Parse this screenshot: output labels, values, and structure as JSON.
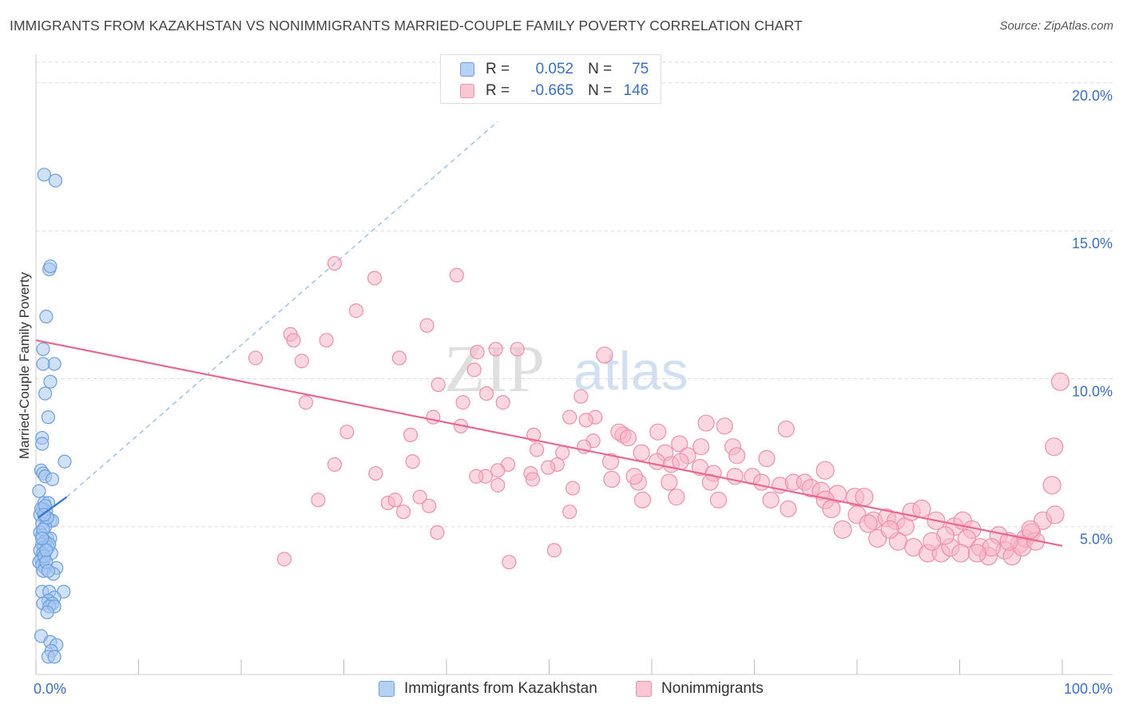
{
  "title": "IMMIGRANTS FROM KAZAKHSTAN VS NONIMMIGRANTS MARRIED-COUPLE FAMILY POVERTY CORRELATION CHART",
  "source": "Source: ZipAtlas.com",
  "watermark": {
    "zip": "ZIP",
    "atlas": "atlas"
  },
  "legend": {
    "r_label": "R =",
    "n_label": "N =",
    "series1": {
      "r": "0.052",
      "n": "75"
    },
    "series2": {
      "r": "-0.665",
      "n": "146"
    }
  },
  "bottom_legend": {
    "series1": "Immigrants from Kazakhstan",
    "series2": "Nonimmigrants"
  },
  "colors": {
    "blue_fill": "#a8c8f0",
    "blue_stroke": "#6a9ee0",
    "blue_line": "#3a78d4",
    "pink_fill": "#f7b7c9",
    "pink_stroke": "#ee8fab",
    "pink_line": "#e8688f",
    "grid": "#d9d9d9",
    "tick_text": "#3b6fc4"
  },
  "chart_data": {
    "type": "scatter",
    "title": "IMMIGRANTS FROM KAZAKHSTAN VS NONIMMIGRANTS MARRIED-COUPLE FAMILY POVERTY CORRELATION CHART",
    "xlabel": "",
    "ylabel": "Married-Couple Family Poverty",
    "xlim": [
      0,
      100
    ],
    "ylim": [
      0,
      20.7
    ],
    "x_tick_labels": [
      "0.0%",
      "100.0%"
    ],
    "y_ticks": [
      5,
      10,
      15,
      20
    ],
    "y_tick_labels": [
      "5.0%",
      "10.0%",
      "15.0%",
      "20.0%"
    ],
    "series": [
      {
        "name": "Immigrants from Kazakhstan",
        "color": "#a8c8f0",
        "r": 0.052,
        "n": 75,
        "trend_solid": {
          "x0": 0.2,
          "y0": 5.3,
          "x1": 3.0,
          "y1": 6.0
        },
        "trend_dashed": {
          "x0": 3.0,
          "y0": 6.0,
          "x1": 45,
          "y1": 18.7
        },
        "points": [
          [
            0.8,
            16.9
          ],
          [
            1.9,
            16.7
          ],
          [
            1.3,
            13.7
          ],
          [
            1.4,
            13.8
          ],
          [
            1.0,
            12.1
          ],
          [
            0.7,
            11.0
          ],
          [
            1.8,
            10.5
          ],
          [
            0.7,
            10.5
          ],
          [
            1.4,
            9.9
          ],
          [
            0.9,
            9.5
          ],
          [
            1.2,
            8.7
          ],
          [
            0.6,
            8.0
          ],
          [
            0.6,
            7.8
          ],
          [
            2.8,
            7.2
          ],
          [
            0.5,
            6.9
          ],
          [
            0.7,
            6.8
          ],
          [
            0.9,
            6.7
          ],
          [
            1.6,
            6.6
          ],
          [
            0.3,
            6.2
          ],
          [
            0.8,
            5.8
          ],
          [
            1.2,
            5.8
          ],
          [
            0.7,
            5.6
          ],
          [
            1.0,
            5.5
          ],
          [
            0.4,
            5.4
          ],
          [
            0.9,
            5.3
          ],
          [
            1.4,
            5.2
          ],
          [
            1.6,
            5.2
          ],
          [
            0.6,
            5.1
          ],
          [
            0.9,
            5.0
          ],
          [
            0.4,
            4.8
          ],
          [
            0.6,
            4.7
          ],
          [
            1.1,
            4.6
          ],
          [
            1.4,
            4.6
          ],
          [
            0.9,
            4.5
          ],
          [
            0.6,
            4.4
          ],
          [
            0.8,
            4.3
          ],
          [
            1.2,
            4.3
          ],
          [
            0.4,
            4.2
          ],
          [
            0.7,
            4.1
          ],
          [
            1.5,
            4.1
          ],
          [
            0.5,
            3.9
          ],
          [
            0.8,
            3.9
          ],
          [
            0.3,
            3.8
          ],
          [
            0.6,
            3.7
          ],
          [
            0.9,
            3.6
          ],
          [
            2.0,
            3.6
          ],
          [
            0.7,
            3.5
          ],
          [
            1.7,
            3.4
          ],
          [
            0.6,
            2.8
          ],
          [
            1.3,
            2.8
          ],
          [
            2.7,
            2.8
          ],
          [
            1.8,
            2.6
          ],
          [
            1.2,
            2.5
          ],
          [
            0.7,
            2.4
          ],
          [
            1.6,
            2.4
          ],
          [
            1.3,
            2.3
          ],
          [
            1.8,
            2.3
          ],
          [
            1.1,
            2.1
          ],
          [
            0.5,
            1.3
          ],
          [
            1.4,
            1.1
          ],
          [
            2.0,
            1.0
          ],
          [
            1.5,
            0.8
          ],
          [
            1.2,
            0.6
          ],
          [
            1.8,
            0.6
          ],
          [
            0.8,
            4.0
          ],
          [
            1.0,
            3.8
          ],
          [
            0.5,
            5.6
          ],
          [
            1.1,
            5.3
          ],
          [
            0.7,
            4.9
          ],
          [
            1.3,
            4.4
          ],
          [
            0.9,
            5.7
          ],
          [
            0.6,
            4.6
          ],
          [
            1.0,
            4.2
          ],
          [
            0.8,
            5.4
          ],
          [
            1.2,
            3.5
          ]
        ]
      },
      {
        "name": "Nonimmigrants",
        "color": "#f7b7c9",
        "r": -0.665,
        "n": 146,
        "trend": {
          "x0": 0,
          "y0": 11.3,
          "x1": 100,
          "y1": 4.35
        },
        "points": [
          [
            29.1,
            13.9
          ],
          [
            33.0,
            13.4
          ],
          [
            41.0,
            13.5
          ],
          [
            31.2,
            12.3
          ],
          [
            38.1,
            11.8
          ],
          [
            24.8,
            11.5
          ],
          [
            25.1,
            11.3
          ],
          [
            28.3,
            11.3
          ],
          [
            21.4,
            10.7
          ],
          [
            25.9,
            10.6
          ],
          [
            35.4,
            10.7
          ],
          [
            43.0,
            10.9
          ],
          [
            44.8,
            11.0
          ],
          [
            46.9,
            11.0
          ],
          [
            55.4,
            10.8
          ],
          [
            42.7,
            10.3
          ],
          [
            39.2,
            9.8
          ],
          [
            43.9,
            9.5
          ],
          [
            26.3,
            9.2
          ],
          [
            41.6,
            9.2
          ],
          [
            45.5,
            9.2
          ],
          [
            53.1,
            9.4
          ],
          [
            38.7,
            8.7
          ],
          [
            52.0,
            8.7
          ],
          [
            54.5,
            8.7
          ],
          [
            65.3,
            8.5
          ],
          [
            67.1,
            8.4
          ],
          [
            73.1,
            8.3
          ],
          [
            41.4,
            8.4
          ],
          [
            30.3,
            8.2
          ],
          [
            36.5,
            8.1
          ],
          [
            48.5,
            8.1
          ],
          [
            53.6,
            8.6
          ],
          [
            57.2,
            8.1
          ],
          [
            54.3,
            7.9
          ],
          [
            56.8,
            8.2
          ],
          [
            57.7,
            8.0
          ],
          [
            60.6,
            8.2
          ],
          [
            62.7,
            7.8
          ],
          [
            64.8,
            7.7
          ],
          [
            48.8,
            7.6
          ],
          [
            53.4,
            7.7
          ],
          [
            51.3,
            7.5
          ],
          [
            50.8,
            7.1
          ],
          [
            56.0,
            7.2
          ],
          [
            59.0,
            7.5
          ],
          [
            61.3,
            7.5
          ],
          [
            63.5,
            7.4
          ],
          [
            67.9,
            7.7
          ],
          [
            68.3,
            7.4
          ],
          [
            71.2,
            7.3
          ],
          [
            29.1,
            7.1
          ],
          [
            36.7,
            7.2
          ],
          [
            46.0,
            7.1
          ],
          [
            45.0,
            6.9
          ],
          [
            49.9,
            7.0
          ],
          [
            60.5,
            7.2
          ],
          [
            61.9,
            7.1
          ],
          [
            62.8,
            7.2
          ],
          [
            64.7,
            7.0
          ],
          [
            66.0,
            6.8
          ],
          [
            69.8,
            6.7
          ],
          [
            76.9,
            6.9
          ],
          [
            33.1,
            6.8
          ],
          [
            43.8,
            6.7
          ],
          [
            48.2,
            6.8
          ],
          [
            48.4,
            6.6
          ],
          [
            56.1,
            6.6
          ],
          [
            58.7,
            6.5
          ],
          [
            65.7,
            6.5
          ],
          [
            68.1,
            6.7
          ],
          [
            70.7,
            6.5
          ],
          [
            72.5,
            6.4
          ],
          [
            73.8,
            6.5
          ],
          [
            42.9,
            6.7
          ],
          [
            58.3,
            6.7
          ],
          [
            61.7,
            6.5
          ],
          [
            74.9,
            6.5
          ],
          [
            75.5,
            6.3
          ],
          [
            76.5,
            6.2
          ],
          [
            78.1,
            6.1
          ],
          [
            79.8,
            6.0
          ],
          [
            80.7,
            6.0
          ],
          [
            27.5,
            5.9
          ],
          [
            34.3,
            5.8
          ],
          [
            35.0,
            5.9
          ],
          [
            37.4,
            6.0
          ],
          [
            38.3,
            5.7
          ],
          [
            45.0,
            6.4
          ],
          [
            52.3,
            6.3
          ],
          [
            59.1,
            5.9
          ],
          [
            62.4,
            6.0
          ],
          [
            66.5,
            5.9
          ],
          [
            71.6,
            5.9
          ],
          [
            73.3,
            5.6
          ],
          [
            76.9,
            5.9
          ],
          [
            77.5,
            5.6
          ],
          [
            80.0,
            5.4
          ],
          [
            81.6,
            5.2
          ],
          [
            82.9,
            5.3
          ],
          [
            83.8,
            5.2
          ],
          [
            84.7,
            5.0
          ],
          [
            85.3,
            5.5
          ],
          [
            86.3,
            5.6
          ],
          [
            87.7,
            5.2
          ],
          [
            89.5,
            5.0
          ],
          [
            90.3,
            5.2
          ],
          [
            91.2,
            4.9
          ],
          [
            93.8,
            4.7
          ],
          [
            95.8,
            4.4
          ],
          [
            96.4,
            4.6
          ],
          [
            97.0,
            4.8
          ],
          [
            98.1,
            5.2
          ],
          [
            99.3,
            5.4
          ],
          [
            99.0,
            6.4
          ],
          [
            99.2,
            7.7
          ],
          [
            99.8,
            9.9
          ],
          [
            35.8,
            5.5
          ],
          [
            52.0,
            5.5
          ],
          [
            78.6,
            4.9
          ],
          [
            82.0,
            4.6
          ],
          [
            84.0,
            4.5
          ],
          [
            85.5,
            4.3
          ],
          [
            86.9,
            4.1
          ],
          [
            88.2,
            4.1
          ],
          [
            89.1,
            4.3
          ],
          [
            90.7,
            4.6
          ],
          [
            92.0,
            4.3
          ],
          [
            92.8,
            4.0
          ],
          [
            94.4,
            4.2
          ],
          [
            95.1,
            4.0
          ],
          [
            96.1,
            4.3
          ],
          [
            97.4,
            4.5
          ],
          [
            88.6,
            4.7
          ],
          [
            90.1,
            4.1
          ],
          [
            93.1,
            4.3
          ],
          [
            94.8,
            4.5
          ],
          [
            96.9,
            4.9
          ],
          [
            81.1,
            5.1
          ],
          [
            83.2,
            4.9
          ],
          [
            87.3,
            4.5
          ],
          [
            91.7,
            4.1
          ],
          [
            39.1,
            4.8
          ],
          [
            24.2,
            3.9
          ],
          [
            46.1,
            3.8
          ],
          [
            50.5,
            4.2
          ]
        ]
      }
    ]
  }
}
